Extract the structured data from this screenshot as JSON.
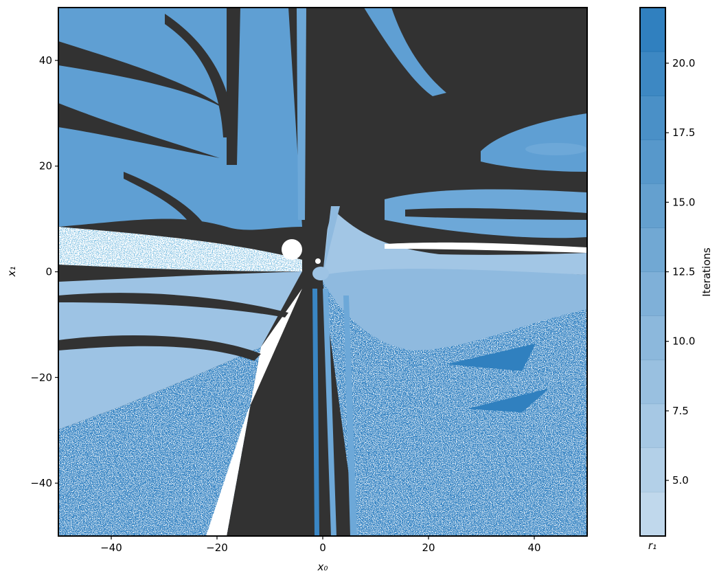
{
  "chart_data": {
    "type": "heatmap",
    "title": "",
    "xlabel": "x₀",
    "ylabel": "x₁",
    "xlim": [
      -50,
      50
    ],
    "ylim": [
      -50,
      50
    ],
    "xticks": [
      -40,
      -20,
      0,
      20,
      40
    ],
    "xtick_labels": [
      "−40",
      "−20",
      "0",
      "20",
      "40"
    ],
    "yticks": [
      -40,
      -20,
      0,
      20,
      40
    ],
    "ytick_labels": [
      "−40",
      "−20",
      "0",
      "20",
      "40"
    ],
    "grid": false,
    "colorbar": {
      "label": "Iterations",
      "range": [
        3,
        22
      ],
      "levels": [
        3,
        4.58,
        6.17,
        7.75,
        9.33,
        10.92,
        12.5,
        14.08,
        15.67,
        17.25,
        18.83,
        20.42,
        22
      ],
      "ticks": [
        5.0,
        7.5,
        10.0,
        12.5,
        15.0,
        17.5,
        20.0
      ],
      "tick_labels": [
        "5.0",
        "7.5",
        "10.0",
        "12.5",
        "15.0",
        "17.5",
        "20.0"
      ],
      "xlabel": "r₁",
      "color_low": "#c0d8ec",
      "color_high": "#3080bf"
    },
    "colors": {
      "non_convergent": "#323232",
      "other_root": "#ffffff"
    }
  }
}
